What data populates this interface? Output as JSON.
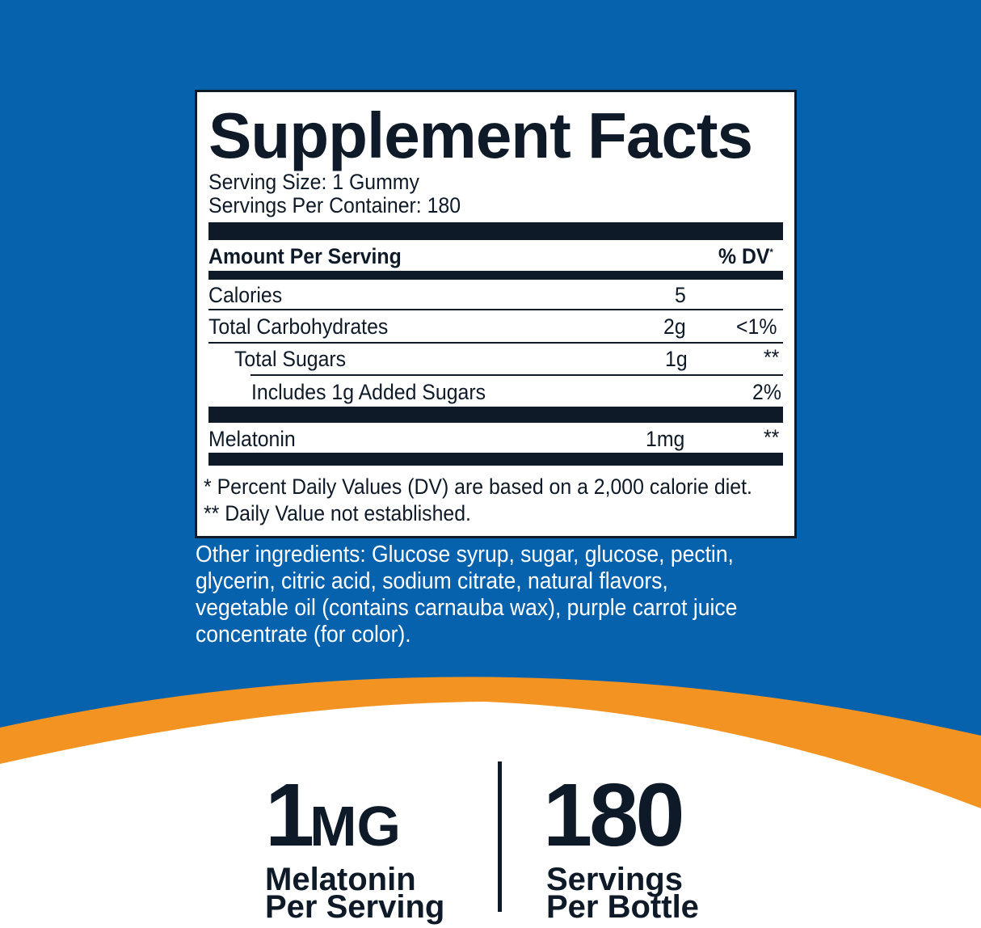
{
  "colors": {
    "background": "#0762ad",
    "accent": "#f29322",
    "text": "#0e1a27"
  },
  "facts": {
    "title": "Supplement Facts",
    "serving_size": "Serving Size: 1 Gummy",
    "servings_per_container": "Servings Per Container: 180",
    "header_amount": "Amount Per Serving",
    "header_dv": "% DV",
    "header_dv_mark": "*",
    "rows": [
      {
        "name": "Calories",
        "amount": "5",
        "dv": ""
      },
      {
        "name": "Total Carbohydrates",
        "amount": "2g",
        "dv": "<1%"
      },
      {
        "name": "Total Sugars",
        "amount": "1g",
        "dv": "**"
      },
      {
        "name": "Includes 1g Added Sugars",
        "amount": "",
        "dv": "2%"
      },
      {
        "name": "Melatonin",
        "amount": "1mg",
        "dv": "**"
      }
    ],
    "footnote1": "* Percent Daily Values (DV) are based on a 2,000 calorie diet.",
    "footnote2": "** Daily Value not established."
  },
  "ingredients": "Other ingredients: Glucose syrup, sugar, glucose, pectin, glycerin, citric acid, sodium citrate, natural flavors, vegetable oil (contains carnauba wax), purple carrot juice concentrate (for color).",
  "highlights": [
    {
      "value": "1",
      "unit": "MG",
      "line1": "Melatonin",
      "line2": "Per Serving"
    },
    {
      "value": "180",
      "unit": "",
      "line1": "Servings",
      "line2": "Per Bottle"
    }
  ]
}
